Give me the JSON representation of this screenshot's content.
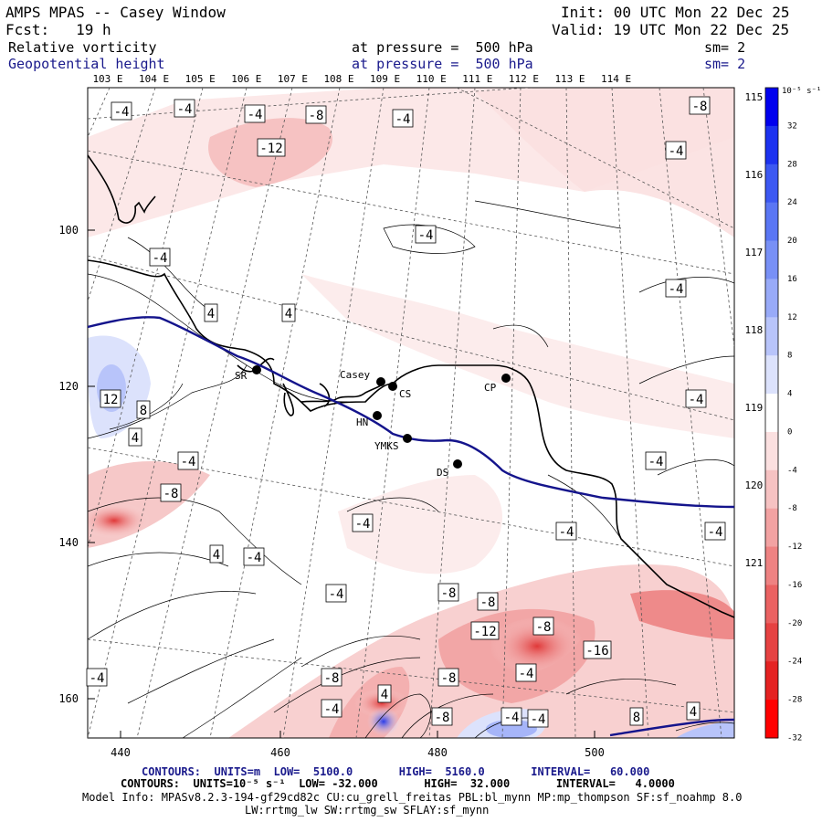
{
  "header": {
    "title": "AMPS MPAS -- Casey Window",
    "fcst": "Fcst:   19 h",
    "init": "Init: 00 UTC Mon 22 Dec 25",
    "valid": "Valid: 19 UTC Mon 22 Dec 25",
    "field1": "Relative vorticity",
    "field1_level": "at pressure =  500 hPa",
    "field1_sm": "sm= 2",
    "field2": "Geopotential height",
    "field2_level": "at pressure =  500 hPa",
    "field2_sm": "sm= 2"
  },
  "chart_data": {
    "type": "map",
    "x_ticks": [
      "440",
      "460",
      "480",
      "500"
    ],
    "y_ticks": [
      "100",
      "120",
      "140",
      "160"
    ],
    "top_lon_labels": [
      "103 E",
      "104 E",
      "105 E",
      "106 E",
      "107 E",
      "108 E",
      "109 E",
      "110 E",
      "111 E",
      "112 E",
      "113 E",
      "114 E"
    ],
    "right_lon_labels": [
      "115 E",
      "116 E",
      "117 E",
      "118 E",
      "119 E",
      "120 E",
      "121 E"
    ],
    "stations": [
      {
        "name": "SR"
      },
      {
        "name": "Casey"
      },
      {
        "name": "CS"
      },
      {
        "name": "HN"
      },
      {
        "name": "YMKS"
      },
      {
        "name": "DS"
      },
      {
        "name": "CP"
      }
    ],
    "contour_labels": [
      "-4",
      "-4",
      "-4",
      "-8",
      "-4",
      "-8",
      "-12",
      "-4",
      "-4",
      "-4",
      "4",
      "4",
      "-4",
      "-4",
      "12",
      "8",
      "4",
      "-4",
      "-8",
      "-4",
      "-4",
      "4",
      "-4",
      "-4",
      "-4",
      "-4",
      "-8",
      "-8",
      "-12",
      "-8",
      "-8",
      "-16",
      "-4",
      "-8",
      "-4",
      "8",
      "4",
      "-8",
      "-4",
      "4",
      "-4",
      "-4"
    ],
    "colorbar": {
      "unit": "10⁻⁵ s⁻¹",
      "ticks": [
        "32",
        "28",
        "24",
        "20",
        "16",
        "12",
        "8",
        "4",
        "0",
        "-4",
        "-8",
        "-12",
        "-16",
        "-20",
        "-24",
        "-28",
        "-32"
      ],
      "colors": [
        "#0000ee",
        "#1c32f0",
        "#3c58f2",
        "#5a76f4",
        "#7890f6",
        "#98aaf8",
        "#b8c4fa",
        "#dce2fc",
        "#ffffff",
        "#fbe0e0",
        "#f6c2c2",
        "#f2a2a2",
        "#ee8282",
        "#ea6262",
        "#e64242",
        "#e42222",
        "#ff0000"
      ]
    },
    "contour_info": {
      "height": {
        "units": "m",
        "low": 5100,
        "high": 5160,
        "interval": 60
      },
      "vorticity": {
        "units": "10⁻⁵ s⁻¹",
        "low": -32,
        "high": 32,
        "interval": 4
      }
    }
  },
  "footer": {
    "line1": "CONTOURS:  UNITS=m  LOW=  5100.0       HIGH=  5160.0       INTERVAL=   60.000",
    "line2": "CONTOURS:  UNITS=10⁻⁵ s⁻¹  LOW= -32.000       HIGH=  32.000       INTERVAL=   4.0000",
    "line3": "Model Info: MPASv8.2.3-194-gf29cd82c CU:cu_grell_freitas PBL:bl_mynn MP:mp_thompson SF:sf_noahmp 8.0",
    "line4": "LW:rrtmg_lw SW:rrtmg_sw SFLAY:sf_mynn"
  }
}
